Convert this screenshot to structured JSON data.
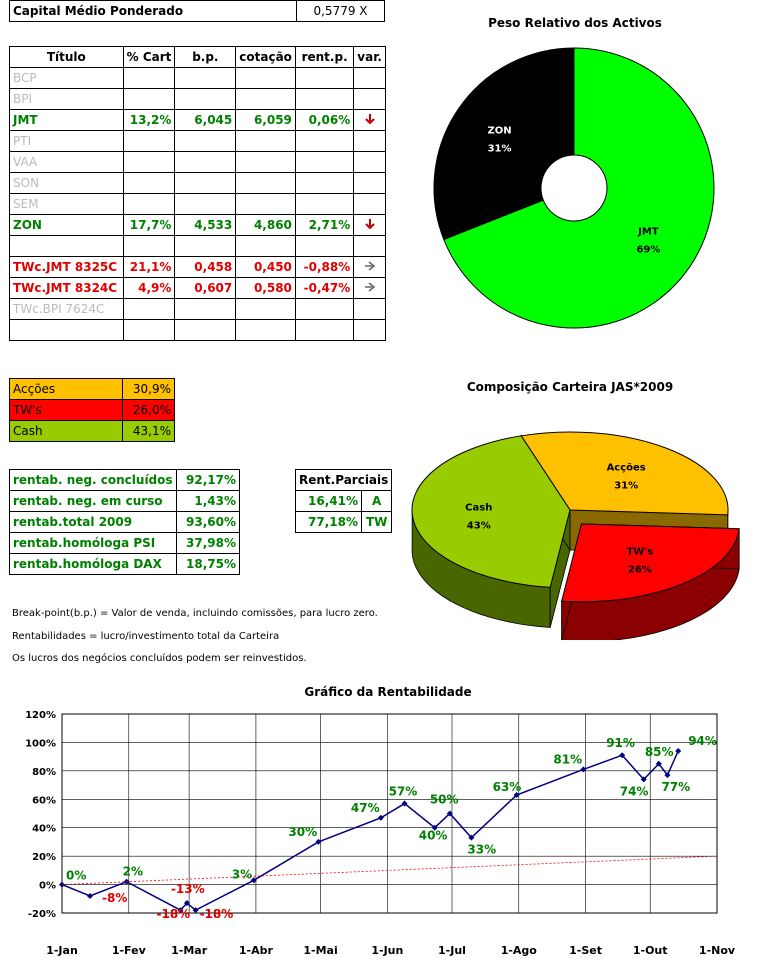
{
  "header": {
    "label": "Capital Médio Ponderado",
    "value": "0,5779 X"
  },
  "portfolio_table": {
    "columns": [
      "Título",
      "% Cart",
      "b.p.",
      "cotação",
      "rent.p.",
      "var."
    ],
    "rows": [
      {
        "titulo": "BCP",
        "cart": "",
        "bp": "",
        "cot": "",
        "rent": "",
        "var": "",
        "style": "grey"
      },
      {
        "titulo": "BPI",
        "cart": "",
        "bp": "",
        "cot": "",
        "rent": "",
        "var": "",
        "style": "grey"
      },
      {
        "titulo": "JMT",
        "cart": "13,2%",
        "bp": "6,045",
        "cot": "6,059",
        "rent": "0,06%",
        "var": "down",
        "style": "green"
      },
      {
        "titulo": "PTI",
        "cart": "",
        "bp": "",
        "cot": "",
        "rent": "",
        "var": "",
        "style": "grey"
      },
      {
        "titulo": "VAA",
        "cart": "",
        "bp": "",
        "cot": "",
        "rent": "",
        "var": "",
        "style": "grey"
      },
      {
        "titulo": "SON",
        "cart": "",
        "bp": "",
        "cot": "",
        "rent": "",
        "var": "",
        "style": "grey"
      },
      {
        "titulo": "SEM",
        "cart": "",
        "bp": "",
        "cot": "",
        "rent": "",
        "var": "",
        "style": "grey"
      },
      {
        "titulo": "ZON",
        "cart": "17,7%",
        "bp": "4,533",
        "cot": "4,860",
        "rent": "2,71%",
        "var": "down",
        "style": "green"
      },
      {
        "titulo": "",
        "cart": "",
        "bp": "",
        "cot": "",
        "rent": "",
        "var": "",
        "style": "grey"
      },
      {
        "titulo": "TWc.JMT 8325C",
        "cart": "21,1%",
        "bp": "0,458",
        "cot": "0,450",
        "rent": "-0,88%",
        "var": "right",
        "style": "red"
      },
      {
        "titulo": "TWc.JMT 8324C",
        "cart": "4,9%",
        "bp": "0,607",
        "cot": "0,580",
        "rent": "-0,47%",
        "var": "right",
        "style": "red"
      },
      {
        "titulo": "TWc.BPI 7624C",
        "cart": "",
        "bp": "",
        "cot": "",
        "rent": "",
        "var": "",
        "style": "grey"
      },
      {
        "titulo": "",
        "cart": "",
        "bp": "",
        "cot": "",
        "rent": "",
        "var": "",
        "style": "grey"
      }
    ]
  },
  "allocation": [
    {
      "label": "Acções",
      "value": "30,9%",
      "color": "#ffc000"
    },
    {
      "label": "TW's",
      "value": "26,0%",
      "color": "#ff0000"
    },
    {
      "label": "Cash",
      "value": "43,1%",
      "color": "#99cc00"
    }
  ],
  "returns": [
    {
      "label": "rentab. neg. concluídos",
      "value": "92,17%"
    },
    {
      "label": "rentab. neg. em curso",
      "value": "1,43%"
    },
    {
      "label": "rentab.total 2009",
      "value": "93,60%"
    },
    {
      "label": "rentab.homóloga PSI",
      "value": "37,98%"
    },
    {
      "label": "rentab.homóloga DAX",
      "value": "18,75%"
    }
  ],
  "partials": {
    "title": "Rent.Parciais",
    "rows": [
      {
        "value": "16,41%",
        "tag": "A"
      },
      {
        "value": "77,18%",
        "tag": "TW"
      }
    ]
  },
  "notes": [
    "Break-point(b.p.) = Valor de venda, incluindo comissões, para lucro zero.",
    "Rentabilidades = lucro/investimento total da Carteira",
    "Os lucros dos negócios concluídos podem ser reinvestidos."
  ],
  "colors": {
    "green_text": "#008000",
    "red_text": "#e00000",
    "grey_text": "#bbbbbb",
    "pie_green": "#00ff00",
    "pie_black": "#000000",
    "line": "#000080"
  },
  "chart_data": [
    {
      "type": "pie",
      "title": "Peso Relativo dos Activos",
      "slices": [
        {
          "label": "JMT",
          "value": 69,
          "display": "69%",
          "color": "#00ff00"
        },
        {
          "label": "ZON",
          "value": 31,
          "display": "31%",
          "color": "#000000"
        }
      ],
      "donut": true
    },
    {
      "type": "pie",
      "title": "Composição Carteira JAS*2009",
      "three_d": true,
      "slices": [
        {
          "label": "Acções",
          "value": 31,
          "display": "31%",
          "color": "#ffc000"
        },
        {
          "label": "TW's",
          "value": 26,
          "display": "26%",
          "color": "#ff0000",
          "exploded": true
        },
        {
          "label": "Cash",
          "value": 43,
          "display": "43%",
          "color": "#99cc00"
        }
      ]
    },
    {
      "type": "line",
      "title": "Gráfico da Rentabilidade",
      "x_range": [
        "2009-01-01",
        "2009-11-01"
      ],
      "x_ticks": [
        "1-Jan",
        "1-Fev",
        "1-Mar",
        "1-Abr",
        "1-Mai",
        "1-Jun",
        "1-Jul",
        "1-Ago",
        "1-Set",
        "1-Out",
        "1-Nov"
      ],
      "y_ticks": [
        "-20%",
        "0%",
        "20%",
        "40%",
        "60%",
        "80%",
        "100%",
        "120%"
      ],
      "ylim": [
        -20,
        120
      ],
      "grid": true,
      "series": [
        {
          "color": "#000080",
          "points": [
            {
              "x": "2009-01-01",
              "y": 0
            },
            {
              "x": "2009-01-14",
              "y": -8
            },
            {
              "x": "2009-01-31",
              "y": 2
            },
            {
              "x": "2009-02-25",
              "y": -18
            },
            {
              "x": "2009-02-28",
              "y": -13
            },
            {
              "x": "2009-03-04",
              "y": -18
            },
            {
              "x": "2009-03-31",
              "y": 3
            },
            {
              "x": "2009-04-30",
              "y": 30
            },
            {
              "x": "2009-05-29",
              "y": 47
            },
            {
              "x": "2009-06-09",
              "y": 57
            },
            {
              "x": "2009-06-23",
              "y": 40
            },
            {
              "x": "2009-06-30",
              "y": 50
            },
            {
              "x": "2009-07-10",
              "y": 33
            },
            {
              "x": "2009-07-31",
              "y": 63
            },
            {
              "x": "2009-08-31",
              "y": 81
            },
            {
              "x": "2009-09-18",
              "y": 91
            },
            {
              "x": "2009-09-28",
              "y": 74
            },
            {
              "x": "2009-10-05",
              "y": 85
            },
            {
              "x": "2009-10-09",
              "y": 77
            },
            {
              "x": "2009-10-14",
              "y": 94
            }
          ]
        },
        {
          "color": "#ff0000",
          "dashed": true,
          "points": [
            {
              "x": "2009-01-01",
              "y": 0
            },
            {
              "x": "2009-11-01",
              "y": 20
            }
          ]
        }
      ],
      "data_labels": [
        {
          "text": "0%",
          "x": "2009-01-01",
          "y": 0,
          "color": "#008000"
        },
        {
          "text": "-8%",
          "x": "2009-01-14",
          "y": -8,
          "color": "#e00000"
        },
        {
          "text": "2%",
          "x": "2009-01-31",
          "y": 2,
          "color": "#008000"
        },
        {
          "text": "-18%",
          "x": "2009-02-25",
          "y": -18,
          "color": "#e00000"
        },
        {
          "text": "-13%",
          "x": "2009-02-28",
          "y": -13,
          "color": "#e00000"
        },
        {
          "text": "-18%",
          "x": "2009-03-04",
          "y": -18,
          "color": "#e00000"
        },
        {
          "text": "3%",
          "x": "2009-03-31",
          "y": 3,
          "color": "#008000"
        },
        {
          "text": "30%",
          "x": "2009-04-30",
          "y": 30,
          "color": "#008000"
        },
        {
          "text": "47%",
          "x": "2009-05-29",
          "y": 47,
          "color": "#008000"
        },
        {
          "text": "57%",
          "x": "2009-06-09",
          "y": 57,
          "color": "#008000"
        },
        {
          "text": "40%",
          "x": "2009-06-23",
          "y": 40,
          "color": "#008000"
        },
        {
          "text": "50%",
          "x": "2009-06-30",
          "y": 50,
          "color": "#008000"
        },
        {
          "text": "33%",
          "x": "2009-07-10",
          "y": 33,
          "color": "#008000"
        },
        {
          "text": "63%",
          "x": "2009-07-31",
          "y": 63,
          "color": "#008000"
        },
        {
          "text": "81%",
          "x": "2009-08-31",
          "y": 81,
          "color": "#008000"
        },
        {
          "text": "91%",
          "x": "2009-09-18",
          "y": 91,
          "color": "#008000"
        },
        {
          "text": "74%",
          "x": "2009-09-28",
          "y": 74,
          "color": "#008000"
        },
        {
          "text": "85%",
          "x": "2009-10-05",
          "y": 85,
          "color": "#008000"
        },
        {
          "text": "77%",
          "x": "2009-10-09",
          "y": 77,
          "color": "#008000"
        },
        {
          "text": "94%",
          "x": "2009-10-14",
          "y": 94,
          "color": "#008000"
        }
      ]
    }
  ]
}
